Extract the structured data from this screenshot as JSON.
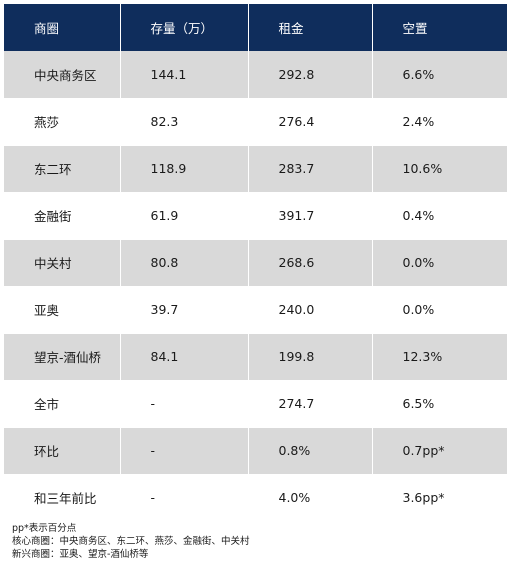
{
  "table": {
    "headers": [
      "商圈",
      "存量（万）",
      "租金",
      "空置"
    ],
    "rows": [
      [
        "中央商务区",
        "144.1",
        "292.8",
        "6.6%"
      ],
      [
        "燕莎",
        "82.3",
        "276.4",
        "2.4%"
      ],
      [
        "东二环",
        "118.9",
        "283.7",
        "10.6%"
      ],
      [
        "金融街",
        "61.9",
        "391.7",
        "0.4%"
      ],
      [
        "中关村",
        "80.8",
        "268.6",
        "0.0%"
      ],
      [
        "亚奥",
        "39.7",
        "240.0",
        "0.0%"
      ],
      [
        "望京-酒仙桥",
        "84.1",
        "199.8",
        "12.3%"
      ],
      [
        "全市",
        "-",
        "274.7",
        "6.5%"
      ],
      [
        "环比",
        "-",
        "0.8%",
        "0.7pp*"
      ],
      [
        "和三年前比",
        "-",
        "4.0%",
        "3.6pp*"
      ]
    ]
  },
  "notes": [
    "pp*表示百分点",
    "核心商圈：中央商务区、东二环、燕莎、金融街、中关村",
    "新兴商圈：亚奥、望京-酒仙桥等"
  ],
  "colors": {
    "header_bg": "#0f2d5c",
    "header_text": "#ffffff",
    "row_shaded": "#d9d9d9",
    "row_plain": "#ffffff"
  }
}
